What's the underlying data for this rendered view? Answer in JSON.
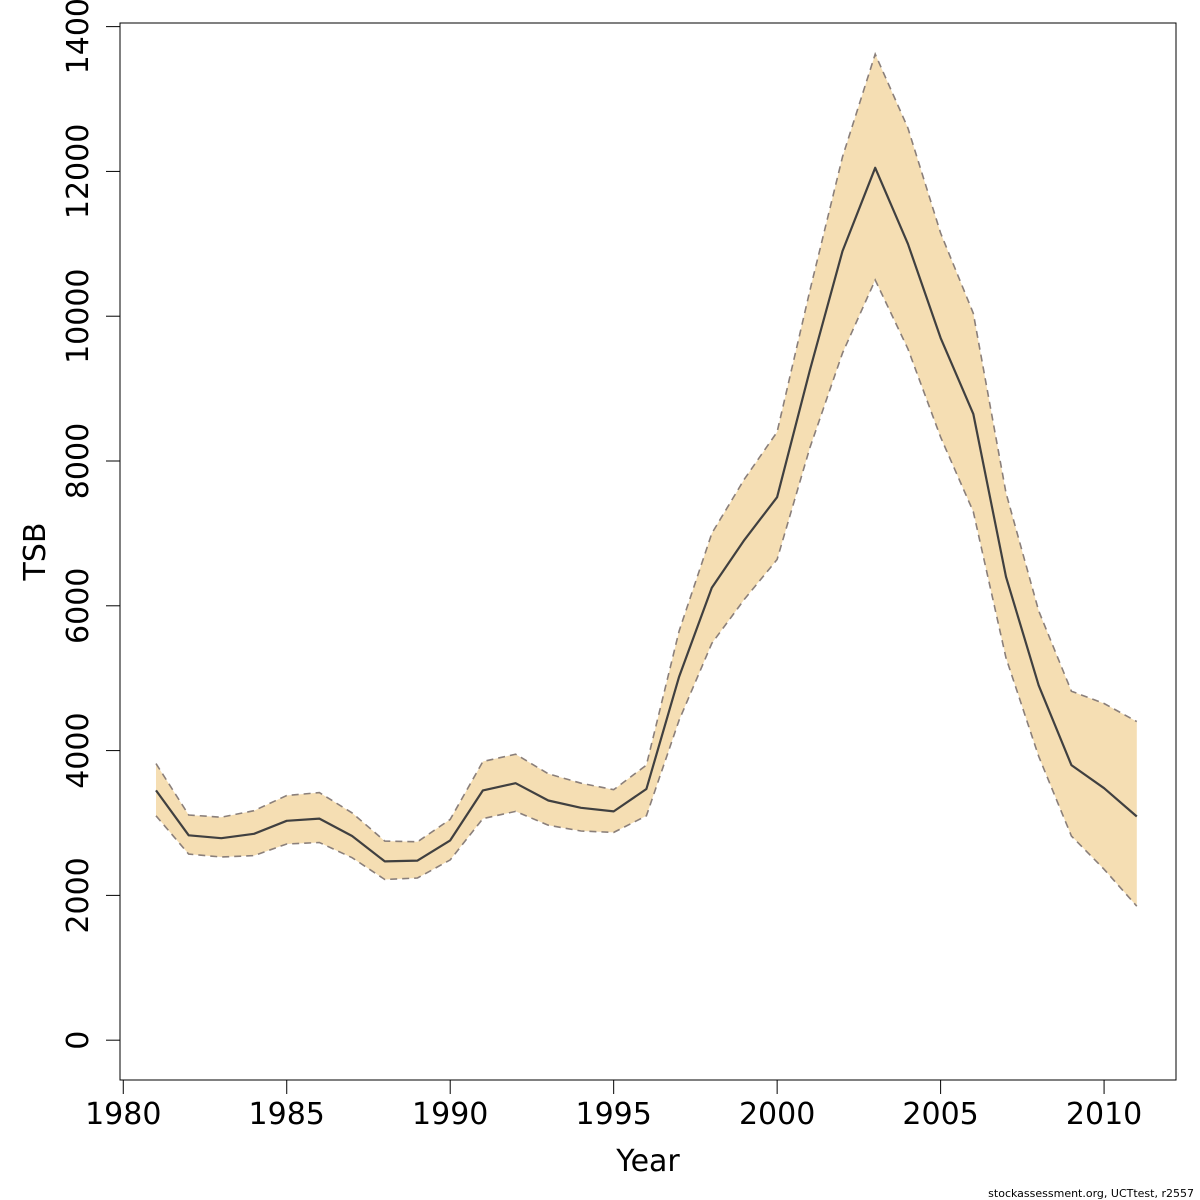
{
  "chart_data": {
    "type": "area",
    "title": "",
    "xlabel": "Year",
    "ylabel": "TSB",
    "xlim": [
      1979.9,
      2012.2
    ],
    "ylim": [
      -550,
      14050
    ],
    "x_ticks": [
      1980,
      1985,
      1990,
      1995,
      2000,
      2005,
      2010
    ],
    "y_ticks": [
      0,
      2000,
      4000,
      6000,
      8000,
      10000,
      12000,
      14000
    ],
    "x_tick_labels": [
      "1980",
      "1985",
      "1990",
      "1995",
      "2000",
      "2005",
      "2010"
    ],
    "y_tick_labels": [
      "0",
      "2000",
      "4000",
      "6000",
      "8000",
      "10000",
      "12000",
      "14000"
    ],
    "grid": false,
    "x": [
      1981,
      1982,
      1983,
      1984,
      1985,
      1986,
      1987,
      1988,
      1989,
      1990,
      1991,
      1992,
      1993,
      1994,
      1995,
      1996,
      1997,
      1998,
      1999,
      2000,
      2001,
      2002,
      2003,
      2004,
      2005,
      2006,
      2007,
      2008,
      2009,
      2010,
      2011
    ],
    "series": [
      {
        "role": "estimate",
        "values": [
          3450,
          2830,
          2790,
          2850,
          3030,
          3060,
          2820,
          2470,
          2480,
          2760,
          3450,
          3550,
          3310,
          3210,
          3160,
          3470,
          5020,
          6250,
          6910,
          7500,
          9250,
          10900,
          12050,
          11000,
          9700,
          8650,
          6400,
          4900,
          3800,
          3480,
          3090
        ]
      },
      {
        "role": "upper",
        "values": [
          3820,
          3110,
          3080,
          3170,
          3380,
          3420,
          3140,
          2750,
          2740,
          3050,
          3850,
          3950,
          3680,
          3550,
          3460,
          3800,
          5650,
          7000,
          7750,
          8400,
          10350,
          12200,
          13620,
          12600,
          11150,
          10040,
          7560,
          5930,
          4820,
          4650,
          4400
        ]
      },
      {
        "role": "lower",
        "values": [
          3100,
          2570,
          2530,
          2550,
          2710,
          2730,
          2520,
          2220,
          2240,
          2490,
          3060,
          3160,
          2970,
          2890,
          2870,
          3100,
          4420,
          5480,
          6090,
          6640,
          8180,
          9490,
          10500,
          9550,
          8330,
          7300,
          5280,
          3920,
          2820,
          2360,
          1850
        ]
      }
    ],
    "colors": {
      "band_fill": "#f5deb3",
      "band_border": "#8a7f7a",
      "line": "#404040",
      "axis": "#000000"
    }
  },
  "footer": "stockassessment.org, UCTtest, r2557"
}
